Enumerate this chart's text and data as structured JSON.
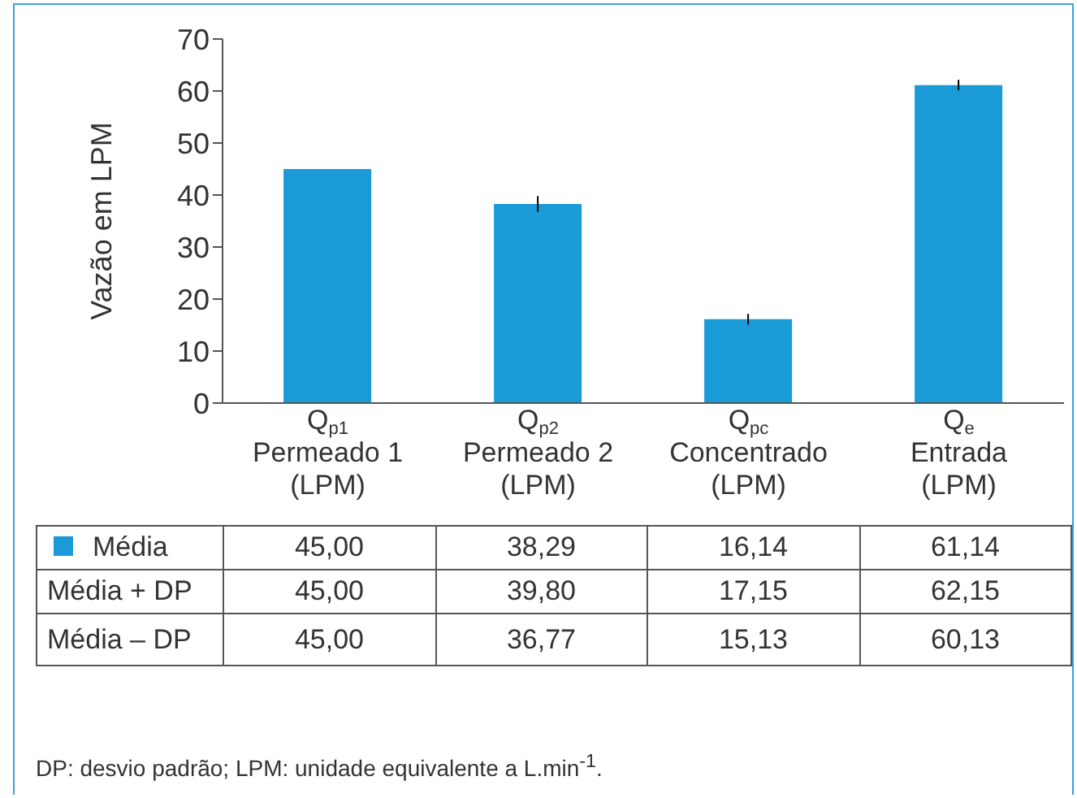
{
  "chart_data": {
    "type": "bar",
    "ylabel": "Vazão em LPM",
    "categories": [
      "Q$_{p1}$\nPermeado 1\n(LPM)",
      "Q$_{p2}$\nPermeado 2\n(LPM)",
      "Q$_{pc}$\nConcentrado\n(LPM)",
      "Q$_{e}$\nEntrada\n(LPM)"
    ],
    "series": [
      {
        "name": "Média",
        "color": "#1a9ad6",
        "values": [
          45.0,
          38.29,
          16.14,
          61.14
        ],
        "value_labels": [
          "45,00",
          "38,29",
          "16,14",
          "61,14"
        ],
        "errors": [
          [
            45.0,
            45.0
          ],
          [
            36.77,
            39.8
          ],
          [
            15.13,
            17.15
          ],
          [
            60.13,
            62.15
          ]
        ]
      }
    ],
    "ylim": [
      0,
      70
    ],
    "yticks": [
      0,
      10,
      20,
      30,
      40,
      50,
      60,
      70
    ],
    "annotations": [
      "Média + DP",
      "45,00",
      "39,80",
      "17,15",
      "62,15",
      "Média – DP",
      "45,00",
      "36,77",
      "15,13",
      "60,13",
      "DP: desvio padrão; LPM: unidade equivalente a L.min$^{-1}$."
    ]
  }
}
